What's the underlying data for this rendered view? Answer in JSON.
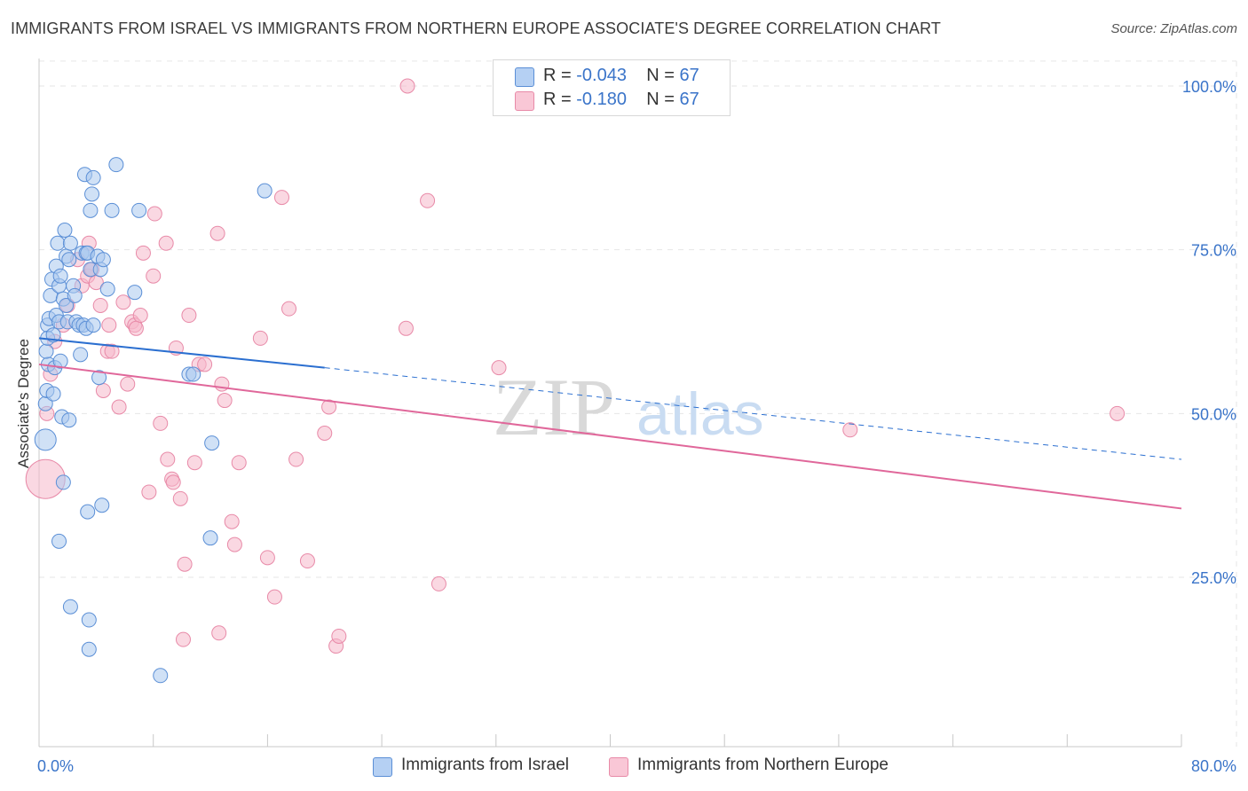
{
  "title": "IMMIGRANTS FROM ISRAEL VS IMMIGRANTS FROM NORTHERN EUROPE ASSOCIATE'S DEGREE CORRELATION CHART",
  "source": "Source: ZipAtlas.com",
  "watermark": {
    "zip": "ZIP",
    "atlas": "atlas"
  },
  "colors": {
    "israel_fill": "#a9c8ef",
    "israel_stroke": "#5b8fd6",
    "israel_line": "#2b6fd0",
    "neu_fill": "#f6b8cb",
    "neu_stroke": "#e88aa8",
    "neu_line": "#e0679a",
    "axis_text": "#3a74c9",
    "grid": "#e6e6e6"
  },
  "stats": {
    "israel": {
      "r_label": "R =",
      "r_value": "-0.043",
      "n_label": "N =",
      "n_value": "67"
    },
    "neu": {
      "r_label": "R =",
      "r_value": "-0.180",
      "n_label": "N =",
      "n_value": "67"
    }
  },
  "legend": {
    "israel": "Immigrants from Israel",
    "neu": "Immigrants from Northern Europe"
  },
  "chart_data": {
    "type": "scatter",
    "title": "IMMIGRANTS FROM ISRAEL VS IMMIGRANTS FROM NORTHERN EUROPE ASSOCIATE'S DEGREE CORRELATION CHART",
    "xlabel": "",
    "ylabel": "Associate's Degree",
    "xlim": [
      0,
      80
    ],
    "ylim": [
      0,
      103
    ],
    "x_tick_labels": [
      "0.0%",
      "80.0%"
    ],
    "y_ticks": [
      25,
      50,
      75,
      100
    ],
    "y_tick_labels": [
      "25.0%",
      "50.0%",
      "75.0%",
      "100.0%"
    ],
    "grid": true,
    "legend_position": "bottom",
    "series": [
      {
        "name": "Immigrants from Israel",
        "trend": {
          "x": [
            0,
            20
          ],
          "y": [
            61.5,
            57.0
          ],
          "dashed_to_x": 80,
          "dashed_to_y": 43.0
        },
        "points": [
          [
            0.2,
            46
          ],
          [
            0.2,
            51.5
          ],
          [
            0.3,
            53.5
          ],
          [
            0.4,
            57.5
          ],
          [
            0.5,
            59.5
          ],
          [
            0.6,
            63.5
          ],
          [
            0.6,
            61.5
          ],
          [
            0.7,
            64.5
          ],
          [
            0.8,
            68
          ],
          [
            0.9,
            70.5
          ],
          [
            1.0,
            62
          ],
          [
            1.0,
            53
          ],
          [
            1.1,
            57
          ],
          [
            1.2,
            72.5
          ],
          [
            1.2,
            65
          ],
          [
            1.3,
            76
          ],
          [
            1.4,
            69.5
          ],
          [
            1.4,
            64
          ],
          [
            1.5,
            71
          ],
          [
            1.5,
            58
          ],
          [
            1.6,
            49.5
          ],
          [
            1.7,
            67.5
          ],
          [
            1.7,
            39.5
          ],
          [
            1.8,
            78
          ],
          [
            1.9,
            66.5
          ],
          [
            1.9,
            74
          ],
          [
            2.0,
            64
          ],
          [
            2.1,
            49
          ],
          [
            2.1,
            73.5
          ],
          [
            2.2,
            76
          ],
          [
            2.4,
            69.5
          ],
          [
            2.5,
            68
          ],
          [
            2.6,
            64
          ],
          [
            2.8,
            63.5
          ],
          [
            2.9,
            59
          ],
          [
            3.0,
            74.5
          ],
          [
            3.1,
            63.5
          ],
          [
            3.2,
            86.5
          ],
          [
            3.3,
            74.5
          ],
          [
            3.3,
            63
          ],
          [
            3.4,
            35
          ],
          [
            3.6,
            81
          ],
          [
            3.7,
            83.5
          ],
          [
            3.4,
            74.5
          ],
          [
            1.4,
            30.5
          ],
          [
            2.2,
            20.5
          ],
          [
            3.5,
            14
          ],
          [
            3.5,
            18.5
          ],
          [
            3.8,
            63.5
          ],
          [
            3.6,
            72
          ],
          [
            3.8,
            86
          ],
          [
            4.1,
            74
          ],
          [
            4.2,
            55.5
          ],
          [
            4.4,
            36
          ],
          [
            4.3,
            72
          ],
          [
            4.5,
            73.5
          ],
          [
            4.8,
            69
          ],
          [
            5.1,
            81
          ],
          [
            5.4,
            88
          ],
          [
            6.7,
            68.5
          ],
          [
            7.0,
            81
          ],
          [
            8.5,
            10
          ],
          [
            10.5,
            56
          ],
          [
            10.8,
            56
          ],
          [
            12.0,
            31
          ],
          [
            12.1,
            45.5
          ],
          [
            15.8,
            84
          ]
        ]
      },
      {
        "name": "Immigrants from Northern Europe",
        "trend": {
          "x": [
            0,
            80
          ],
          "y": [
            57.5,
            35.5
          ]
        },
        "points": [
          [
            0.2,
            40
          ],
          [
            0.3,
            50
          ],
          [
            0.8,
            56
          ],
          [
            1.1,
            61
          ],
          [
            1.7,
            63.5
          ],
          [
            2.0,
            66.5
          ],
          [
            2.7,
            73.5
          ],
          [
            3.0,
            69.5
          ],
          [
            3.4,
            71
          ],
          [
            3.5,
            76
          ],
          [
            3.6,
            72
          ],
          [
            3.7,
            72
          ],
          [
            4.0,
            70
          ],
          [
            4.3,
            66.5
          ],
          [
            4.5,
            53.5
          ],
          [
            4.8,
            59.5
          ],
          [
            4.9,
            63.5
          ],
          [
            5.1,
            59.5
          ],
          [
            5.6,
            51
          ],
          [
            5.9,
            67
          ],
          [
            6.2,
            54.5
          ],
          [
            6.5,
            64
          ],
          [
            6.7,
            63.5
          ],
          [
            6.8,
            63
          ],
          [
            7.1,
            65
          ],
          [
            7.3,
            74.5
          ],
          [
            7.7,
            38
          ],
          [
            8.0,
            71
          ],
          [
            8.1,
            80.5
          ],
          [
            8.5,
            48.5
          ],
          [
            8.9,
            76
          ],
          [
            9.0,
            43
          ],
          [
            9.3,
            40
          ],
          [
            9.4,
            39.5
          ],
          [
            9.6,
            60
          ],
          [
            9.9,
            37
          ],
          [
            10.1,
            15.5
          ],
          [
            10.2,
            27
          ],
          [
            10.5,
            65
          ],
          [
            10.9,
            42.5
          ],
          [
            11.2,
            57.5
          ],
          [
            11.6,
            57.5
          ],
          [
            12.5,
            77.5
          ],
          [
            12.6,
            16.5
          ],
          [
            12.8,
            54.5
          ],
          [
            13.0,
            52
          ],
          [
            13.5,
            33.5
          ],
          [
            13.7,
            30
          ],
          [
            14.0,
            42.5
          ],
          [
            15.5,
            61.5
          ],
          [
            16.0,
            28
          ],
          [
            16.5,
            22
          ],
          [
            17.0,
            83
          ],
          [
            17.5,
            66
          ],
          [
            18.0,
            43
          ],
          [
            18.8,
            27.5
          ],
          [
            20.0,
            47
          ],
          [
            20.3,
            51
          ],
          [
            20.8,
            14.5
          ],
          [
            21.0,
            16
          ],
          [
            25.8,
            100
          ],
          [
            25.7,
            63
          ],
          [
            27.2,
            82.5
          ],
          [
            28.0,
            24
          ],
          [
            32.2,
            57
          ],
          [
            56.8,
            47.5
          ],
          [
            75.5,
            50
          ]
        ]
      }
    ]
  }
}
